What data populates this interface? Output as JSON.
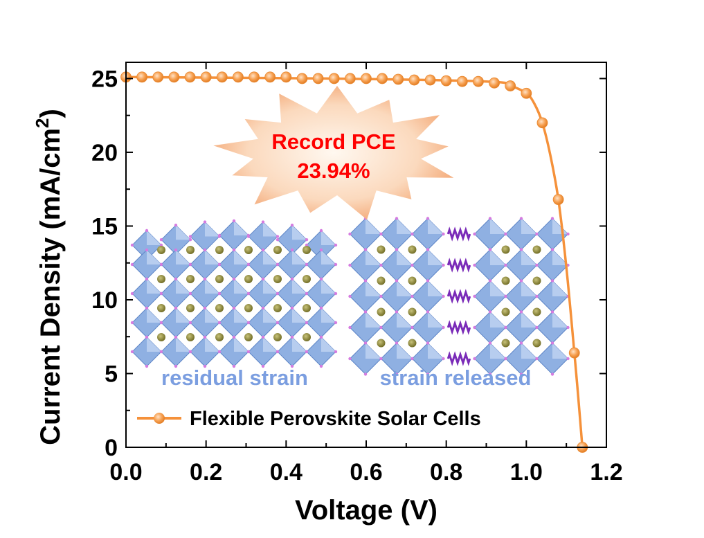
{
  "chart_data": {
    "type": "line",
    "xlabel": "Voltage (V)",
    "ylabel_prefix": "Current Density (mA/cm",
    "ylabel_sup": "2",
    "ylabel_suffix": ")",
    "xlim": [
      0.0,
      1.2
    ],
    "ylim": [
      0,
      26.1
    ],
    "x_major_ticks": [
      0.0,
      0.2,
      0.4,
      0.6,
      0.8,
      1.0,
      1.2
    ],
    "x_tick_labels": [
      "0.0",
      "0.2",
      "0.4",
      "0.6",
      "0.8",
      "1.0",
      "1.2"
    ],
    "y_major_ticks": [
      0,
      5,
      10,
      15,
      20,
      25
    ],
    "y_tick_labels": [
      "0",
      "5",
      "10",
      "15",
      "20",
      "25"
    ],
    "grid": false,
    "legend_position": "bottom-left",
    "series": [
      {
        "name": "Flexible Perovskite Solar Cells",
        "color": "#f5913a",
        "marker_points": {
          "x": [
            0.0,
            0.04,
            0.08,
            0.12,
            0.16,
            0.2,
            0.24,
            0.28,
            0.32,
            0.36,
            0.4,
            0.44,
            0.48,
            0.52,
            0.56,
            0.6,
            0.64,
            0.68,
            0.72,
            0.76,
            0.8,
            0.84,
            0.88,
            0.92,
            0.96,
            1.0,
            1.04,
            1.08,
            1.12,
            1.14
          ],
          "y": [
            25.1,
            25.1,
            25.1,
            25.1,
            25.1,
            25.1,
            25.1,
            25.1,
            25.1,
            25.1,
            25.1,
            25.0,
            25.0,
            25.0,
            25.0,
            25.0,
            25.0,
            24.95,
            24.9,
            24.9,
            24.85,
            24.8,
            24.8,
            24.7,
            24.5,
            24.0,
            22.0,
            16.8,
            6.4,
            0.0
          ]
        },
        "line_points": {
          "x": [
            0.0,
            0.5,
            0.9,
            0.96,
            1.0,
            1.02,
            1.04,
            1.06,
            1.08,
            1.1,
            1.12,
            1.13,
            1.14
          ],
          "y": [
            25.1,
            25.0,
            24.8,
            24.5,
            24.0,
            23.3,
            22.0,
            19.8,
            16.8,
            12.2,
            6.4,
            3.3,
            0.0
          ]
        }
      }
    ],
    "annotations": {
      "callout_line1": "Record PCE",
      "callout_line2": "23.94%",
      "inset_left_label": "residual strain",
      "inset_right_label": "strain released"
    }
  }
}
